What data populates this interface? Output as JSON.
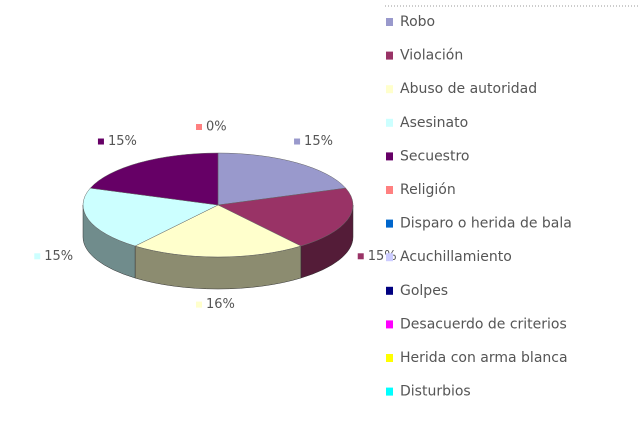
{
  "chart_data": {
    "type": "pie3d",
    "categories": [
      "Robo",
      "Violación",
      "Abuso de autoridad",
      "Asesinato",
      "Secuestro",
      "Religión",
      "Disparo o herida de bala",
      "Acuchillamiento",
      "Golpes",
      "Desacuerdo de criterios",
      "Herida con arma blanca",
      "Disturbios"
    ],
    "values": [
      15,
      15,
      16,
      15,
      15,
      0,
      null,
      null,
      null,
      null,
      null,
      null
    ],
    "value_labels": [
      "15%",
      "15%",
      "16%",
      "15%",
      "15%",
      "0%",
      null,
      null,
      null,
      null,
      null,
      null
    ],
    "colors": [
      "#9999cc",
      "#993366",
      "#ffffcc",
      "#ccffff",
      "#660066",
      "#ff8080",
      "#0066cc",
      "#ccccff",
      "#000080",
      "#ff00ff",
      "#ffff00",
      "#00ffff"
    ],
    "legend": "right"
  }
}
